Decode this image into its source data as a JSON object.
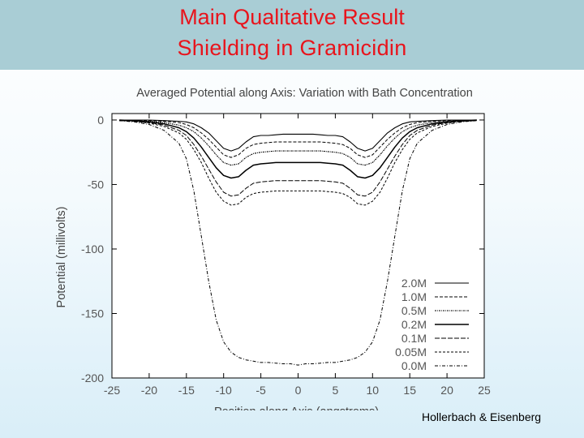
{
  "slide": {
    "title_line1": "Main Qualitative Result",
    "title_line2": "Shielding in Gramicidin",
    "credit": "Hollerbach & Eisenberg"
  },
  "chart_data": {
    "type": "line",
    "title": "Averaged Potential along Axis: Variation with Bath Concentration",
    "xlabel": "Position along Axis (angstroms)",
    "ylabel": "Potential (millivolts)",
    "xlim": [
      -25,
      25
    ],
    "ylim": [
      -200,
      5
    ],
    "xticks": [
      -25,
      -20,
      -15,
      -10,
      -5,
      0,
      5,
      10,
      15,
      20,
      25
    ],
    "yticks": [
      0,
      -50,
      -100,
      -150,
      -200
    ],
    "legend_position": "bottom-right",
    "grid": false,
    "x": [
      -24,
      -22,
      -20,
      -18,
      -16,
      -15,
      -14,
      -13,
      -12,
      -11,
      -10,
      -9,
      -8,
      -7,
      -6,
      -5,
      -4,
      -3,
      -2,
      -1,
      0,
      1,
      2,
      3,
      4,
      5,
      6,
      7,
      8,
      9,
      10,
      11,
      12,
      13,
      14,
      15,
      16,
      18,
      20,
      22,
      24
    ],
    "series": [
      {
        "name": "2.0M",
        "dash": "",
        "width": 1.1,
        "values": [
          0,
          0,
          0,
          -0.5,
          -1,
          -1.5,
          -3,
          -6,
          -10,
          -16,
          -22,
          -24,
          -22,
          -17,
          -13,
          -12,
          -12,
          -11.5,
          -11,
          -11,
          -11,
          -11,
          -11,
          -11.5,
          -12,
          -12,
          -13,
          -17,
          -22,
          -24,
          -22,
          -16,
          -10,
          -6,
          -3,
          -1.5,
          -1,
          -0.5,
          0,
          0,
          0
        ]
      },
      {
        "name": "1.0M",
        "dash": "4,2",
        "width": 1,
        "values": [
          0,
          0,
          -0.5,
          -1,
          -2,
          -3.5,
          -6,
          -10,
          -15,
          -21,
          -27,
          -29,
          -27,
          -22,
          -19,
          -18,
          -17.5,
          -17,
          -17,
          -17,
          -17,
          -17,
          -17,
          -17,
          -17.5,
          -18,
          -19,
          -22,
          -27,
          -29,
          -27,
          -21,
          -15,
          -10,
          -6,
          -3.5,
          -2,
          -1,
          -0.5,
          0,
          0
        ]
      },
      {
        "name": "0.5M",
        "dash": "2,1,1,1",
        "width": 1.1,
        "values": [
          0,
          -0.5,
          -1,
          -2,
          -4,
          -6,
          -9,
          -14,
          -20,
          -27,
          -33,
          -35,
          -34,
          -29,
          -26,
          -25,
          -24.5,
          -24,
          -24,
          -24,
          -24,
          -24,
          -24,
          -24,
          -24.5,
          -25,
          -26,
          -29,
          -34,
          -35,
          -33,
          -27,
          -20,
          -14,
          -9,
          -6,
          -4,
          -2,
          -1,
          -0.5,
          0
        ]
      },
      {
        "name": "0.2M",
        "dash": "",
        "width": 1.5,
        "values": [
          0,
          -0.5,
          -1.5,
          -3,
          -6,
          -9,
          -14,
          -21,
          -29,
          -37,
          -43,
          -45,
          -44,
          -39,
          -35,
          -34,
          -33.5,
          -33,
          -33,
          -33,
          -33,
          -33,
          -33,
          -33,
          -33.5,
          -34,
          -35,
          -39,
          -44,
          -45,
          -43,
          -37,
          -29,
          -21,
          -14,
          -9,
          -6,
          -3,
          -1.5,
          -0.5,
          0
        ]
      },
      {
        "name": "0.1M",
        "dash": "6,2",
        "width": 1,
        "values": [
          -0.5,
          -1,
          -2,
          -4,
          -8,
          -12,
          -19,
          -28,
          -38,
          -48,
          -56,
          -59,
          -58,
          -53,
          -49,
          -48,
          -47.5,
          -47,
          -47,
          -47,
          -47,
          -47,
          -47,
          -47,
          -47.5,
          -48,
          -49,
          -53,
          -58,
          -59,
          -56,
          -48,
          -38,
          -28,
          -19,
          -12,
          -8,
          -4,
          -2,
          -1,
          -0.5
        ]
      },
      {
        "name": "0.05M",
        "dash": "3,2",
        "width": 1,
        "values": [
          -0.5,
          -1,
          -2.5,
          -5,
          -10,
          -15,
          -23,
          -33,
          -45,
          -56,
          -63,
          -66,
          -65,
          -60,
          -57,
          -56,
          -55.5,
          -55,
          -55,
          -55,
          -55,
          -55,
          -55,
          -55,
          -55.5,
          -56,
          -57,
          -60,
          -65,
          -66,
          -63,
          -56,
          -45,
          -33,
          -23,
          -15,
          -10,
          -5,
          -2.5,
          -1,
          -0.5
        ]
      },
      {
        "name": "0.0M",
        "dash": "4,2,1,2",
        "width": 1,
        "values": [
          -0.5,
          -1.5,
          -3.5,
          -8,
          -18,
          -30,
          -55,
          -90,
          -125,
          -155,
          -172,
          -180,
          -184,
          -186,
          -187,
          -188,
          -188,
          -188.5,
          -189,
          -189,
          -190,
          -189,
          -189,
          -188.5,
          -188,
          -188,
          -187,
          -186,
          -184,
          -180,
          -172,
          -155,
          -125,
          -90,
          -55,
          -30,
          -18,
          -8,
          -3.5,
          -1.5,
          -0.5
        ]
      }
    ]
  }
}
